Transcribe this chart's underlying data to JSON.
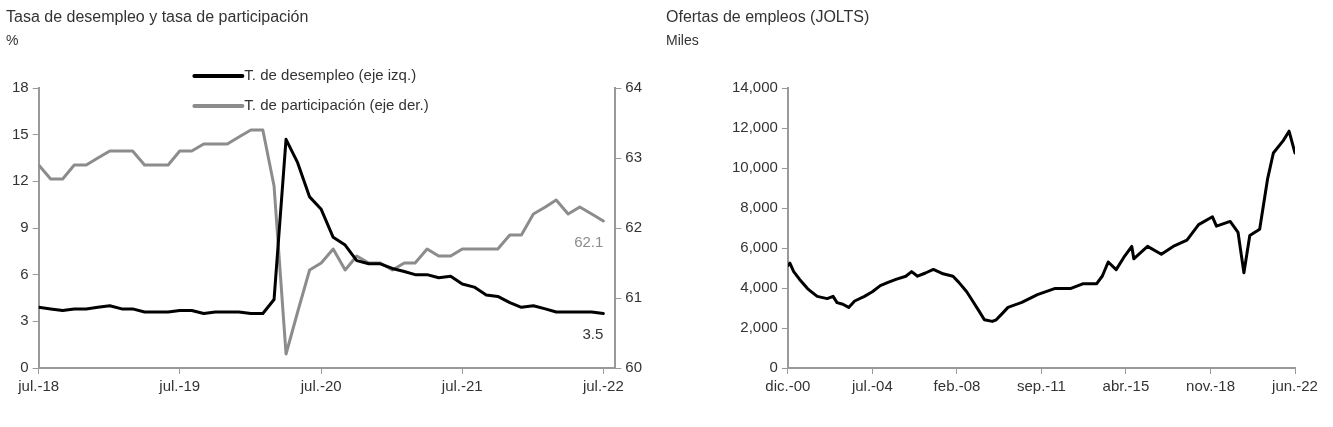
{
  "chart_data": [
    {
      "type": "line",
      "title": "Tasa de desempleo y tasa de participación",
      "ylabel": "%",
      "legend": "top",
      "grid": false,
      "x": [
        "2018-07",
        "2018-08",
        "2018-09",
        "2018-10",
        "2018-11",
        "2018-12",
        "2019-01",
        "2019-02",
        "2019-03",
        "2019-04",
        "2019-05",
        "2019-06",
        "2019-07",
        "2019-08",
        "2019-09",
        "2019-10",
        "2019-11",
        "2019-12",
        "2020-01",
        "2020-02",
        "2020-03",
        "2020-04",
        "2020-05",
        "2020-06",
        "2020-07",
        "2020-08",
        "2020-09",
        "2020-10",
        "2020-11",
        "2020-12",
        "2021-01",
        "2021-02",
        "2021-03",
        "2021-04",
        "2021-05",
        "2021-06",
        "2021-07",
        "2021-08",
        "2021-09",
        "2021-10",
        "2021-11",
        "2021-12",
        "2022-01",
        "2022-02",
        "2022-03",
        "2022-04",
        "2022-05",
        "2022-06",
        "2022-07"
      ],
      "series": [
        {
          "name": "T. de desempleo (eje izq.)",
          "color": "#000000",
          "values": [
            3.9,
            3.8,
            3.7,
            3.8,
            3.8,
            3.9,
            4.0,
            3.8,
            3.8,
            3.6,
            3.6,
            3.6,
            3.7,
            3.7,
            3.5,
            3.6,
            3.6,
            3.6,
            3.5,
            3.5,
            4.4,
            14.7,
            13.2,
            11.0,
            10.2,
            8.4,
            7.9,
            6.9,
            6.7,
            6.7,
            6.4,
            6.2,
            6.0,
            6.0,
            5.8,
            5.9,
            5.4,
            5.2,
            4.7,
            4.6,
            4.2,
            3.9,
            4.0,
            3.8,
            3.6,
            3.6,
            3.6,
            3.6,
            3.5
          ]
        },
        {
          "name": "T. de participación (eje der.)",
          "color": "#8c8c8c",
          "axis": "y2",
          "values": [
            62.9,
            62.7,
            62.7,
            62.9,
            62.9,
            63.0,
            63.1,
            63.1,
            63.1,
            62.9,
            62.9,
            62.9,
            63.1,
            63.1,
            63.2,
            63.2,
            63.2,
            63.3,
            63.4,
            63.4,
            62.6,
            60.2,
            60.8,
            61.4,
            61.5,
            61.7,
            61.4,
            61.6,
            61.5,
            61.5,
            61.4,
            61.5,
            61.5,
            61.7,
            61.6,
            61.6,
            61.7,
            61.7,
            61.7,
            61.7,
            61.9,
            61.9,
            62.2,
            62.3,
            62.4,
            62.2,
            62.3,
            62.2,
            62.1
          ]
        }
      ],
      "annotations": [
        "3.5",
        "62.1"
      ],
      "xlim": [
        "2018-07",
        "2022-08"
      ],
      "xticks": [
        {
          "value": "2018-07",
          "label": "jul.-18"
        },
        {
          "value": "2019-07",
          "label": "jul.-19"
        },
        {
          "value": "2020-07",
          "label": "jul.-20"
        },
        {
          "value": "2021-07",
          "label": "jul.-21"
        },
        {
          "value": "2022-07",
          "label": "jul.-22"
        }
      ],
      "ylim": [
        0,
        18
      ],
      "yticks": [
        0,
        3,
        6,
        9,
        12,
        15,
        18
      ],
      "y2lim": [
        60,
        64
      ],
      "y2ticks": [
        60,
        61,
        62,
        63,
        64
      ]
    },
    {
      "type": "line",
      "title": "Ofertas de empleos (JOLTS)",
      "ylabel": "Miles",
      "grid": false,
      "x": [
        "2000-12",
        "2001-01",
        "2001-03",
        "2001-06",
        "2001-10",
        "2001-12",
        "2002-03",
        "2002-08",
        "2002-11",
        "2003-01",
        "2003-04",
        "2003-07",
        "2003-10",
        "2004-03",
        "2004-07",
        "2004-11",
        "2005-03",
        "2005-07",
        "2005-12",
        "2006-03",
        "2006-06",
        "2006-10",
        "2007-02",
        "2007-07",
        "2007-12",
        "2008-03",
        "2008-07",
        "2008-10",
        "2009-01",
        "2009-04",
        "2009-08",
        "2009-10",
        "2010-01",
        "2010-04",
        "2010-11",
        "2011-07",
        "2012-04",
        "2012-12",
        "2013-06",
        "2014-01",
        "2014-04",
        "2014-07",
        "2014-11",
        "2015-03",
        "2015-07",
        "2015-08",
        "2016-03",
        "2016-10",
        "2017-04",
        "2017-11",
        "2018-05",
        "2018-12",
        "2019-02",
        "2019-09",
        "2020-01",
        "2020-04",
        "2020-07",
        "2020-12",
        "2021-04",
        "2021-07",
        "2021-12",
        "2022-03",
        "2022-06"
      ],
      "series": [
        {
          "color": "#000000",
          "values": [
            5130,
            5240,
            4820,
            4430,
            3970,
            3810,
            3580,
            3470,
            3580,
            3270,
            3190,
            3030,
            3350,
            3580,
            3810,
            4120,
            4280,
            4430,
            4590,
            4820,
            4590,
            4750,
            4930,
            4710,
            4590,
            4280,
            3810,
            3350,
            2880,
            2410,
            2330,
            2410,
            2720,
            3030,
            3280,
            3670,
            3980,
            3980,
            4210,
            4210,
            4600,
            5300,
            4920,
            5540,
            6080,
            5460,
            6080,
            5690,
            6080,
            6390,
            7170,
            7560,
            7090,
            7330,
            6780,
            4760,
            6630,
            6940,
            9430,
            10750,
            11370,
            11840,
            10750
          ]
        }
      ],
      "xlim": [
        "2000-12",
        "2022-06"
      ],
      "xticks": [
        {
          "value": "2000-12",
          "label": "dic.-00"
        },
        {
          "value": "2004-07",
          "label": "jul.-04"
        },
        {
          "value": "2008-02",
          "label": "feb.-08"
        },
        {
          "value": "2011-09",
          "label": "sep.-11"
        },
        {
          "value": "2015-04",
          "label": "abr.-15"
        },
        {
          "value": "2018-11",
          "label": "nov.-18"
        },
        {
          "value": "2022-06",
          "label": "jun.-22"
        }
      ],
      "ylim": [
        0,
        14000
      ],
      "yticks": [
        0,
        {
          "value": 2000,
          "label": "2,000"
        },
        {
          "value": 4000,
          "label": "4,000"
        },
        {
          "value": 6000,
          "label": "6,000"
        },
        {
          "value": 8000,
          "label": "8,000"
        },
        {
          "value": 10000,
          "label": "10,000"
        },
        {
          "value": 12000,
          "label": "12,000"
        },
        {
          "value": 14000,
          "label": "14,000"
        }
      ]
    }
  ]
}
